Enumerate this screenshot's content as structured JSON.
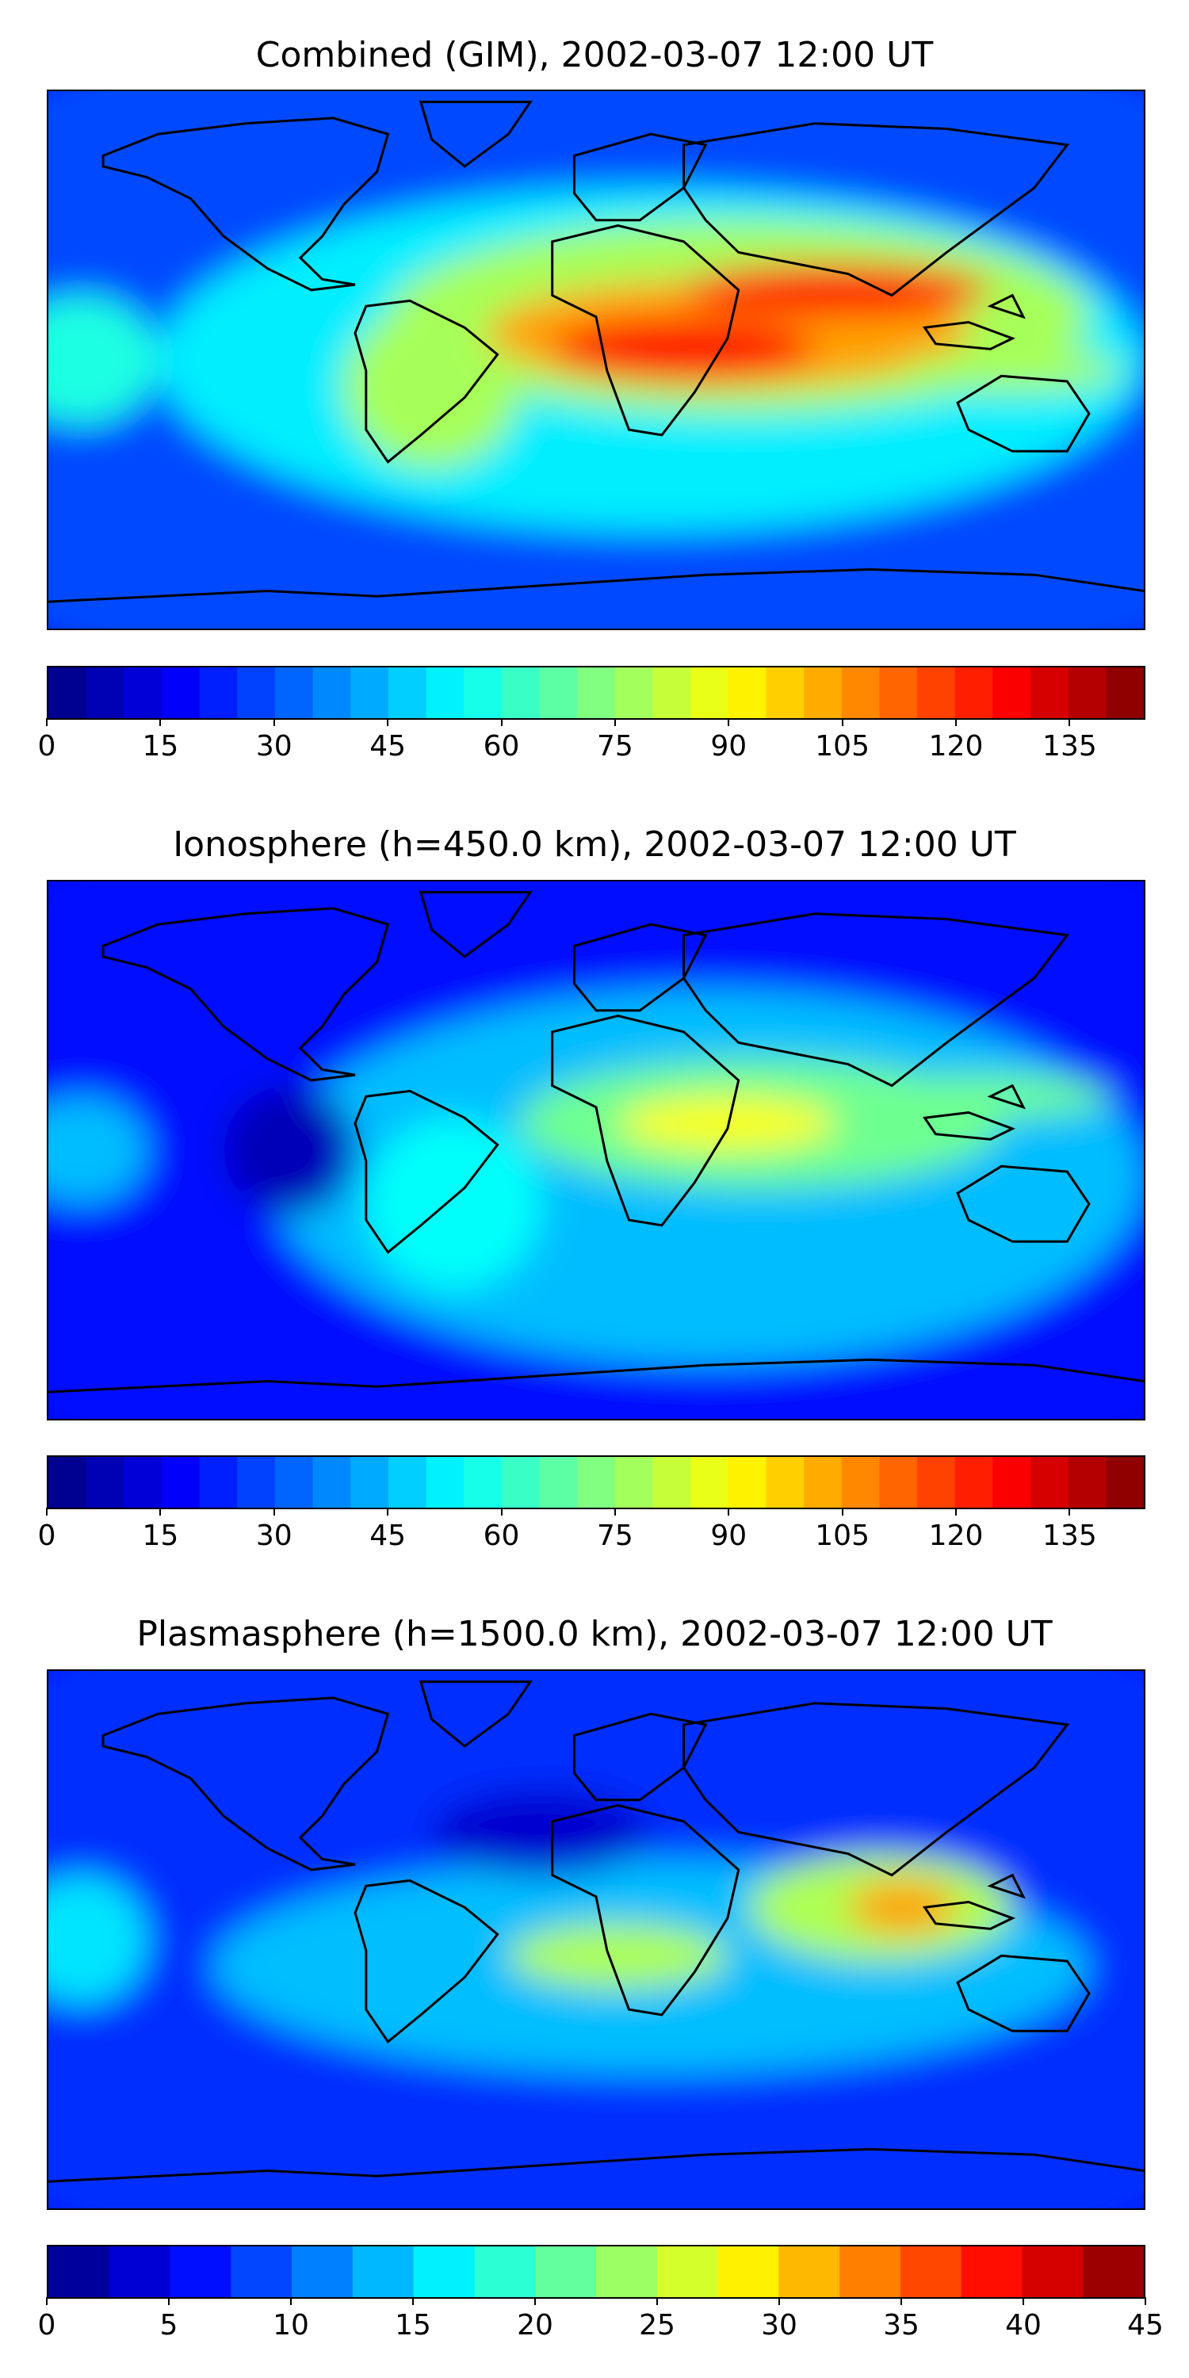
{
  "panels": [
    {
      "title": "Combined (GIM), 2002-03-07 12:00 UT",
      "colorbar": {
        "min": 0,
        "max": 145,
        "levels": 29,
        "ticks": [
          "0",
          "15",
          "30",
          "45",
          "60",
          "75",
          "90",
          "105",
          "120",
          "135"
        ]
      },
      "field_peak": 130
    },
    {
      "title": "Ionosphere  (h=450.0 km), 2002-03-07 12:00 UT",
      "colorbar": {
        "min": 0,
        "max": 145,
        "levels": 29,
        "ticks": [
          "0",
          "15",
          "30",
          "45",
          "60",
          "75",
          "90",
          "105",
          "120",
          "135"
        ]
      },
      "field_peak": 100
    },
    {
      "title": "Plasmasphere (h=1500.0 km), 2002-03-07 12:00 UT",
      "colorbar": {
        "min": 0,
        "max": 45,
        "levels": 18,
        "ticks": [
          "0",
          "5",
          "10",
          "15",
          "20",
          "25",
          "30",
          "35",
          "40",
          "45"
        ]
      },
      "field_peak": 35
    }
  ],
  "colormap": "jet",
  "coastline_color": "#000000"
}
